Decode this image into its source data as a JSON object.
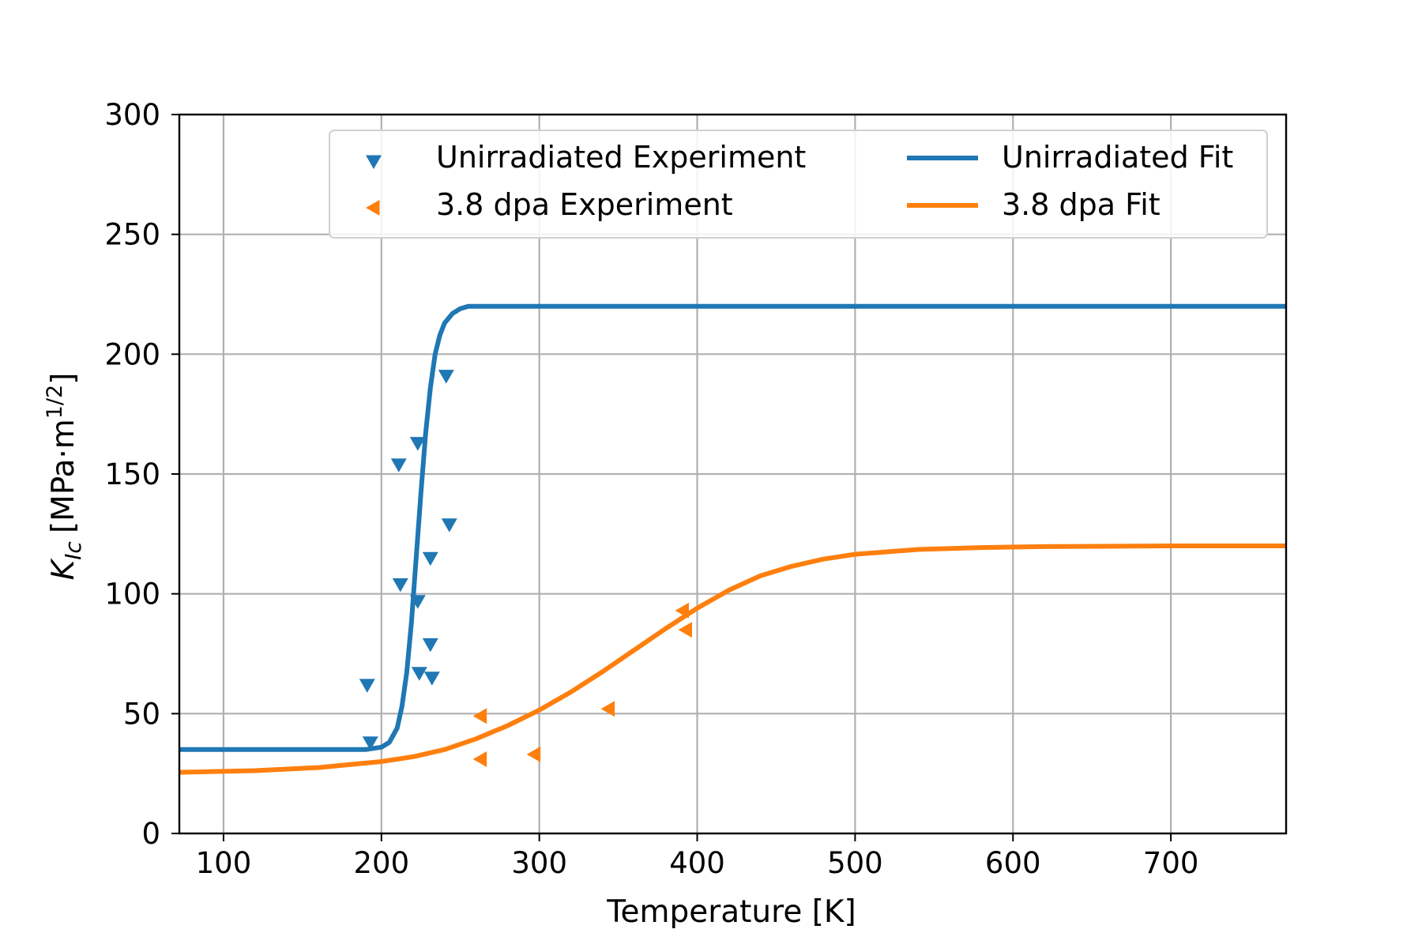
{
  "chart_data": {
    "type": "line",
    "xlabel": "Temperature [K]",
    "ylabel": {
      "symbol": "K",
      "subscript": "Ic",
      "units_prefix": "[MPa·m",
      "units_superscript": "1/2",
      "units_suffix": "]"
    },
    "xlim": [
      72,
      773
    ],
    "ylim": [
      0,
      300
    ],
    "xticks": [
      "100",
      "200",
      "300",
      "400",
      "500",
      "600",
      "700"
    ],
    "yticks": [
      "0",
      "50",
      "100",
      "150",
      "200",
      "250",
      "300"
    ],
    "grid": true,
    "legend_position": "top-right",
    "legend": {
      "unirr_exp": "Unirradiated Experiment",
      "irr_exp": "3.8 dpa Experiment",
      "unirr_fit": "Unirradiated Fit",
      "irr_fit": "3.8 dpa Fit"
    },
    "colors": {
      "blue": "#1f77b4",
      "orange": "#ff7f0e",
      "grid": "#b0b0b0"
    },
    "series": [
      {
        "name": "Unirradiated Experiment",
        "kind": "scatter",
        "marker": "triangle-down",
        "color": "#1f77b4",
        "points": [
          [
            191,
            62
          ],
          [
            193,
            38
          ],
          [
            211,
            154
          ],
          [
            212,
            104
          ],
          [
            223,
            163
          ],
          [
            223,
            97
          ],
          [
            224,
            67
          ],
          [
            231,
            115
          ],
          [
            231,
            79
          ],
          [
            232,
            65
          ],
          [
            241,
            191
          ],
          [
            243,
            129
          ]
        ]
      },
      {
        "name": "3.8 dpa Experiment",
        "kind": "scatter",
        "marker": "triangle-left",
        "color": "#ff7f0e",
        "points": [
          [
            263,
            49
          ],
          [
            263,
            31
          ],
          [
            297,
            33
          ],
          [
            344,
            52
          ],
          [
            391,
            93
          ],
          [
            393,
            85
          ]
        ]
      },
      {
        "name": "Unirradiated Fit",
        "kind": "line",
        "color": "#1f77b4",
        "x": [
          72,
          150,
          190,
          200,
          205,
          210,
          213,
          216,
          219,
          222,
          225,
          228,
          231,
          234,
          237,
          240,
          245,
          250,
          255,
          260,
          300,
          400,
          500,
          600,
          700,
          773
        ],
        "values": [
          35,
          35,
          35,
          36,
          38,
          44,
          53,
          67,
          88,
          115,
          142,
          167,
          186,
          200,
          208,
          213,
          217,
          219,
          220,
          220,
          220,
          220,
          220,
          220,
          220,
          220
        ]
      },
      {
        "name": "3.8 dpa Fit",
        "kind": "line",
        "color": "#ff7f0e",
        "x": [
          72,
          120,
          160,
          200,
          220,
          240,
          260,
          280,
          300,
          320,
          340,
          360,
          380,
          400,
          420,
          440,
          460,
          480,
          500,
          540,
          580,
          620,
          700,
          773
        ],
        "values": [
          25.5,
          26.2,
          27.5,
          30,
          32,
          35,
          39.5,
          45,
          51.5,
          59,
          67.5,
          76.5,
          85.5,
          94,
          101.5,
          107.5,
          111.5,
          114.5,
          116.5,
          118.5,
          119.3,
          119.7,
          120,
          120
        ]
      }
    ]
  }
}
